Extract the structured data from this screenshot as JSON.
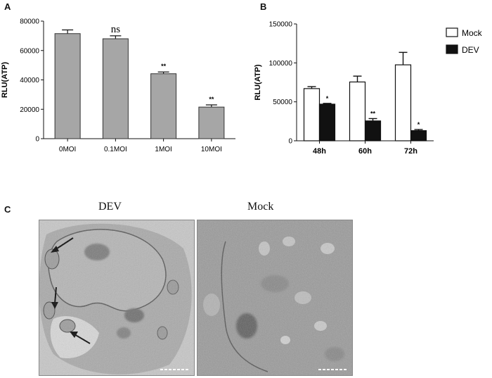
{
  "panels": {
    "a": "A",
    "b": "B",
    "c": "C"
  },
  "chart_data": [
    {
      "type": "bar",
      "panel": "A",
      "categories": [
        "0MOI",
        "0.1MOI",
        "1MOI",
        "10MOI"
      ],
      "values": [
        71500,
        68000,
        44200,
        21500
      ],
      "errors": [
        2500,
        2000,
        1200,
        1500
      ],
      "significance": [
        "",
        "ns",
        "**",
        "**"
      ],
      "ylabel": "RLU(ATP)",
      "ylim": [
        0,
        80000
      ],
      "yticks": [
        "0",
        "20000",
        "40000",
        "60000",
        "80000"
      ],
      "bar_color": "#a6a6a6"
    },
    {
      "type": "bar",
      "panel": "B",
      "categories": [
        "48h",
        "60h",
        "72h"
      ],
      "series": [
        {
          "name": "Mock",
          "values": [
            67000,
            75500,
            97500
          ],
          "errors": [
            2500,
            7500,
            16000
          ],
          "significance": [
            "",
            "",
            ""
          ],
          "color": "#ffffff"
        },
        {
          "name": "DEV",
          "values": [
            47000,
            25500,
            13000
          ],
          "errors": [
            1000,
            3000,
            1500
          ],
          "significance": [
            "*",
            "**",
            "*"
          ],
          "color": "#111111"
        }
      ],
      "ylabel": "RLU(ATP)",
      "ylim": [
        0,
        150000
      ],
      "yticks": [
        "0",
        "50000",
        "100000",
        "150000"
      ],
      "legend": "top-right"
    }
  ],
  "micrographs": {
    "dev_label": "DEV",
    "mock_label": "Mock"
  }
}
